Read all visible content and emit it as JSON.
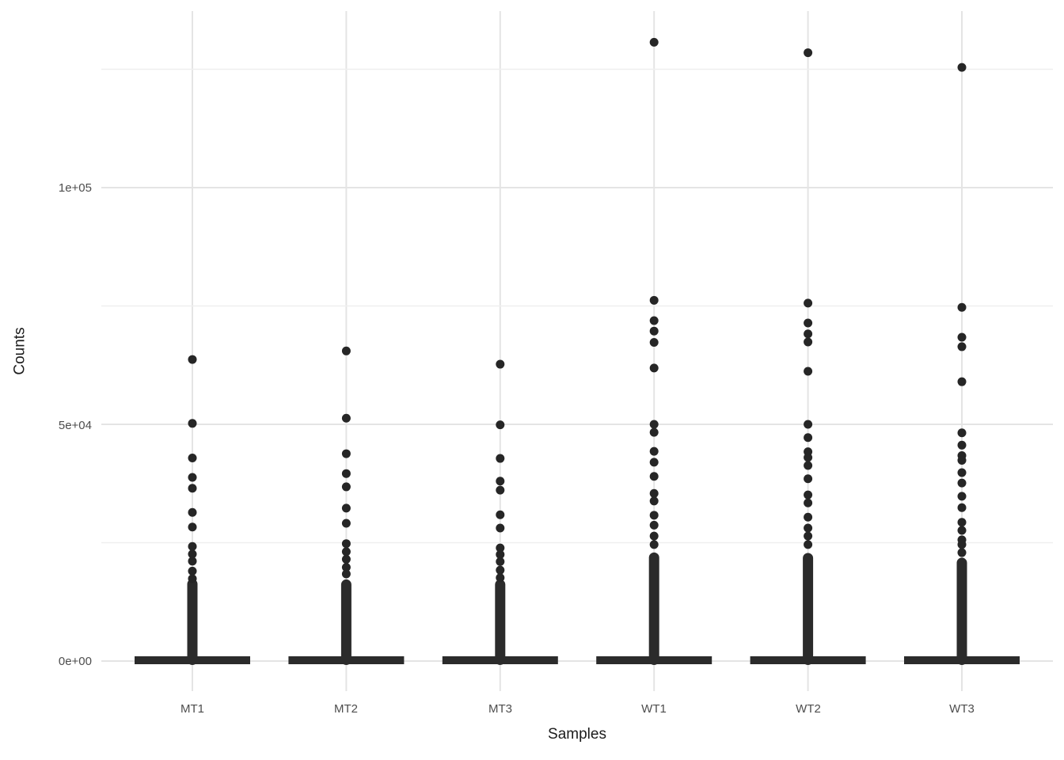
{
  "figure": {
    "background": "#ffffff"
  },
  "chart_data": {
    "type": "boxplot",
    "title": "",
    "xlabel": "Samples",
    "ylabel": "Counts",
    "categories": [
      "MT1",
      "MT2",
      "MT3",
      "WT1",
      "WT2",
      "WT3"
    ],
    "y_tick_labels": [
      "0e+00",
      "5e+04",
      "1e+05"
    ],
    "y_tick_values": [
      0,
      50000,
      100000
    ],
    "y_minor_values": [
      25000,
      75000,
      125000
    ],
    "ylim": [
      0,
      137000
    ],
    "grid": true,
    "legend_position": "none",
    "series": [
      {
        "name": "MT1",
        "box": {
          "median": 0
        },
        "dense_column_top": 16500,
        "outliers": [
          63700,
          50200,
          42900,
          38800,
          36500,
          31400,
          28300,
          24200,
          22600,
          21100,
          19000,
          17400
        ]
      },
      {
        "name": "MT2",
        "box": {
          "median": 0
        },
        "dense_column_top": 16400,
        "outliers": [
          65500,
          51300,
          43800,
          39600,
          36800,
          32300,
          29100,
          24800,
          23100,
          21500,
          19800,
          18400
        ]
      },
      {
        "name": "MT3",
        "box": {
          "median": 0
        },
        "dense_column_top": 16400,
        "outliers": [
          62700,
          49900,
          42800,
          38000,
          36100,
          30900,
          28100,
          23900,
          22500,
          21000,
          19200,
          17600
        ]
      },
      {
        "name": "WT1",
        "box": {
          "median": 0
        },
        "dense_column_top": 22100,
        "outliers": [
          130700,
          76200,
          71900,
          69700,
          67300,
          61900,
          50000,
          48300,
          44300,
          42000,
          39000,
          35400,
          33800,
          30800,
          28700,
          26400,
          24600
        ]
      },
      {
        "name": "WT2",
        "box": {
          "median": 0
        },
        "dense_column_top": 22000,
        "outliers": [
          128500,
          75600,
          71400,
          69100,
          67400,
          61200,
          50000,
          47200,
          44200,
          43000,
          41300,
          38500,
          35100,
          33400,
          30400,
          28100,
          26400,
          24600
        ]
      },
      {
        "name": "WT3",
        "box": {
          "median": 0
        },
        "dense_column_top": 21000,
        "outliers": [
          125400,
          74700,
          68400,
          66400,
          59000,
          48200,
          45600,
          43400,
          42400,
          39800,
          37600,
          34800,
          32400,
          29300,
          27600,
          25600,
          24600,
          22900
        ]
      }
    ]
  },
  "colors": {
    "point": "#262626",
    "box": "#2b2b2b",
    "grid_major": "#e4e4e4",
    "grid_minor": "#efefef",
    "tick_text": "#4d4d4d",
    "title_text": "#1c1c1c"
  }
}
